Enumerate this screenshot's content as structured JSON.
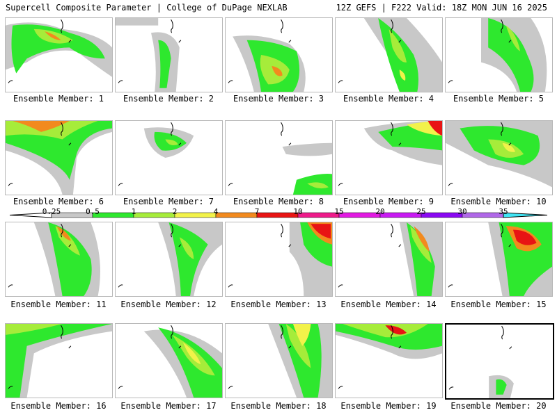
{
  "header": {
    "title": "Supercell Composite Parameter | College of DuPage NEXLAB",
    "run_info": "12Z GEFS | F222 Valid: 18Z MON JUN 16 2025"
  },
  "panels": [
    {
      "label": "Ensemble Member: 1"
    },
    {
      "label": "Ensemble Member: 2"
    },
    {
      "label": "Ensemble Member: 3"
    },
    {
      "label": "Ensemble Member: 4"
    },
    {
      "label": "Ensemble Member: 5"
    },
    {
      "label": "Ensemble Member: 6"
    },
    {
      "label": "Ensemble Member: 7"
    },
    {
      "label": "Ensemble Member: 8"
    },
    {
      "label": "Ensemble Member: 9"
    },
    {
      "label": "Ensemble Member: 10"
    },
    {
      "label": "Ensemble Member: 11"
    },
    {
      "label": "Ensemble Member: 12"
    },
    {
      "label": "Ensemble Member: 13"
    },
    {
      "label": "Ensemble Member: 14"
    },
    {
      "label": "Ensemble Member: 15"
    },
    {
      "label": "Ensemble Member: 16"
    },
    {
      "label": "Ensemble Member: 17"
    },
    {
      "label": "Ensemble Member: 18"
    },
    {
      "label": "Ensemble Member: 19"
    },
    {
      "label": "Ensemble Member: 20"
    }
  ],
  "colorbar": {
    "labels": [
      "0.25",
      "0.5",
      "1",
      "2",
      "4",
      "7",
      "10",
      "15",
      "20",
      "25",
      "30",
      "35"
    ],
    "colors": [
      "#c8c8c8",
      "#2ee82e",
      "#a6ec3a",
      "#f2f24a",
      "#f28a1e",
      "#e81414",
      "#ee1a8a",
      "#e21ae2",
      "#c81af2",
      "#8a08f2",
      "#b068e8",
      "#40e4f4"
    ]
  }
}
